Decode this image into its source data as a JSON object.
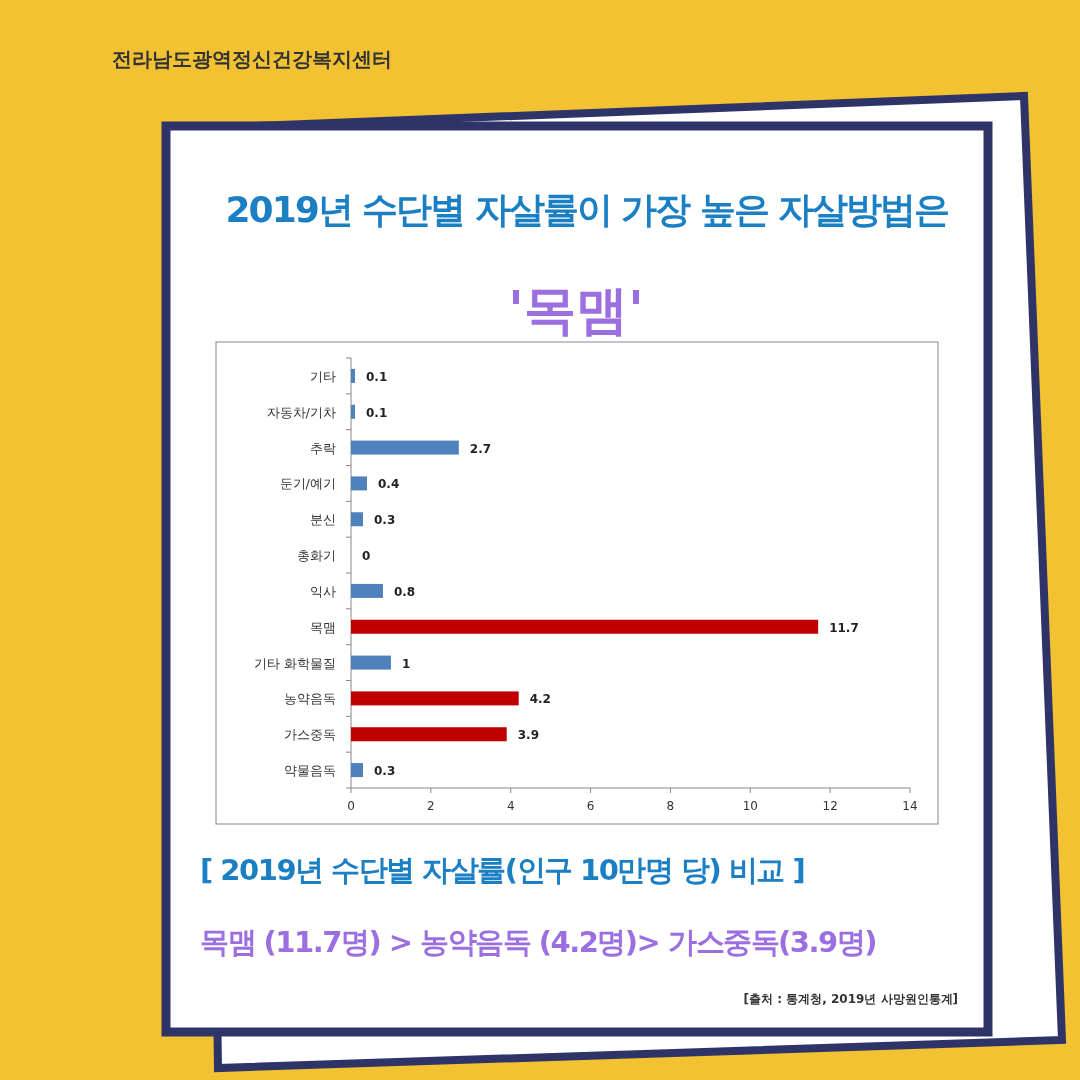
{
  "chart_data": {
    "type": "bar",
    "orientation": "horizontal",
    "title": "2019년  수단별 자살률이 가장 높은 자살방법은",
    "subtitle": "'목맴'",
    "categories": [
      "기타",
      "자동차/기차",
      "추락",
      "둔기/예기",
      "분신",
      "총화기",
      "익사",
      "목맴",
      "기타 화학물질",
      "농약음독",
      "가스중독",
      "약물음독"
    ],
    "values": [
      0.1,
      0.1,
      2.7,
      0.4,
      0.3,
      0,
      0.8,
      11.7,
      1,
      4.2,
      3.9,
      0.3
    ],
    "colors": [
      "#4f81bd",
      "#4f81bd",
      "#4f81bd",
      "#4f81bd",
      "#4f81bd",
      "#4f81bd",
      "#4f81bd",
      "#c00000",
      "#4f81bd",
      "#c00000",
      "#c00000",
      "#4f81bd"
    ],
    "xlim": [
      0,
      14
    ],
    "xticks": [
      0,
      2,
      4,
      6,
      8,
      10,
      12,
      14
    ],
    "data_labels": true,
    "annotations": [
      "전라남도광역정신건강복지센터",
      "[ 2019년  수단별 자살률(인구 10만명 당) 비교 ]",
      "목맴 (11.7명) > 농약음독 (4.2명)> 가스중독(3.9명)",
      "[출처 : 통계청, 2019년 사망원인통계]"
    ]
  }
}
